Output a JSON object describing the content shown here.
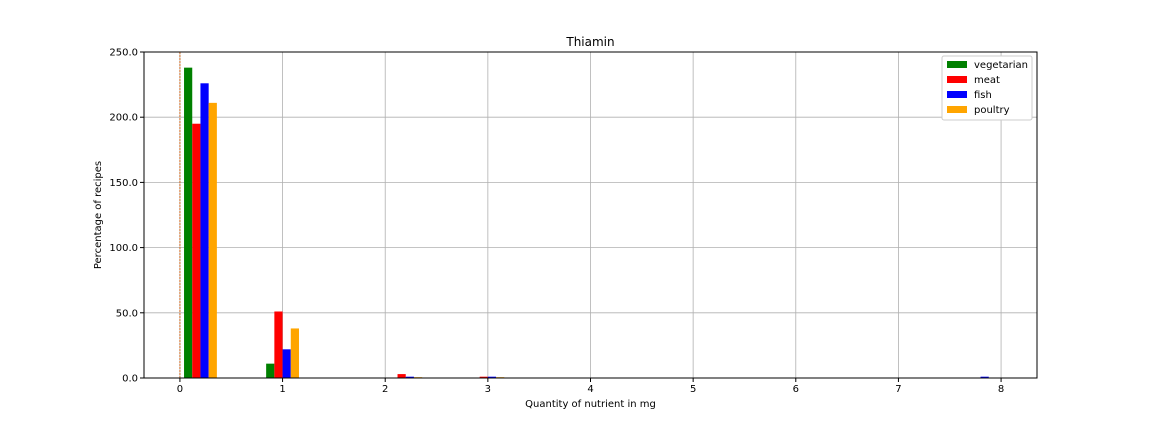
{
  "chart_data": {
    "type": "bar",
    "title": "Thiamin",
    "xlabel": "Quantity of nutrient in mg",
    "ylabel": "Percentage of recipes",
    "xlim": [
      -0.35,
      8.35
    ],
    "ylim": [
      0,
      250
    ],
    "xticks": [
      0,
      1,
      2,
      3,
      4,
      5,
      6,
      7,
      8
    ],
    "xtick_labels": [
      "0",
      "1",
      "2",
      "3",
      "4",
      "5",
      "6",
      "7",
      "8"
    ],
    "yticks": [
      0,
      50,
      100,
      150,
      200,
      250
    ],
    "ytick_labels": [
      "0.0",
      "50.0",
      "100.0",
      "150.0",
      "200.0",
      "250.0"
    ],
    "grid": true,
    "legend_position": "top-right",
    "reference_line_x": 0,
    "series": [
      {
        "name": "vegetarian",
        "color": "#008000",
        "points": [
          {
            "x": 0.08,
            "y": 238
          },
          {
            "x": 0.88,
            "y": 11
          }
        ]
      },
      {
        "name": "meat",
        "color": "#ff0000",
        "points": [
          {
            "x": 0.16,
            "y": 195
          },
          {
            "x": 0.96,
            "y": 51
          },
          {
            "x": 2.16,
            "y": 3
          },
          {
            "x": 2.96,
            "y": 1
          }
        ]
      },
      {
        "name": "fish",
        "color": "#0000ff",
        "points": [
          {
            "x": 0.24,
            "y": 226
          },
          {
            "x": 1.04,
            "y": 22
          },
          {
            "x": 2.24,
            "y": 1
          },
          {
            "x": 3.04,
            "y": 1
          },
          {
            "x": 7.84,
            "y": 1
          }
        ]
      },
      {
        "name": "poultry",
        "color": "#ffa500",
        "points": [
          {
            "x": 0.32,
            "y": 211
          },
          {
            "x": 1.12,
            "y": 38
          },
          {
            "x": 2.32,
            "y": 0.5
          },
          {
            "x": 3.12,
            "y": 0.5
          }
        ]
      }
    ]
  }
}
